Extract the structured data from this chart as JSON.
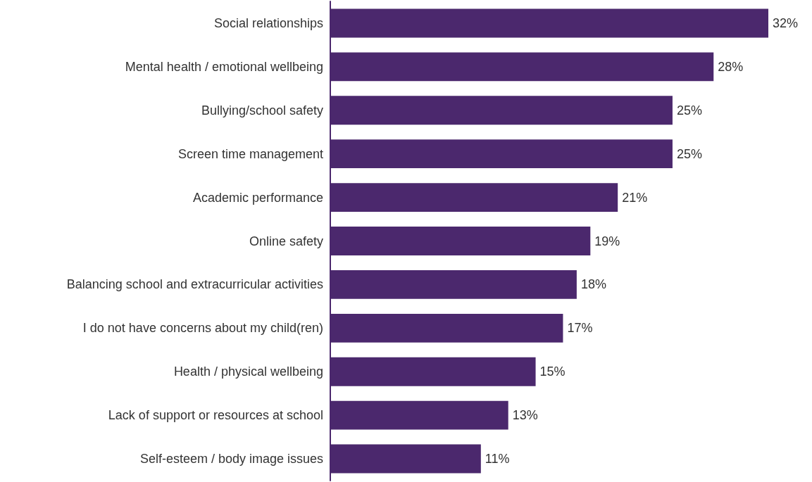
{
  "chart_data": {
    "type": "bar",
    "orientation": "horizontal",
    "categories": [
      "Social relationships",
      "Mental health / emotional wellbeing",
      "Bullying/school safety",
      "Screen time management",
      "Academic performance",
      "Online safety",
      "Balancing school and extracurricular activities",
      "I do not have concerns about my child(ren)",
      "Health / physical wellbeing",
      "Lack of support or resources at school",
      "Self-esteem / body image issues"
    ],
    "values": [
      32,
      28,
      25,
      25,
      21,
      19,
      18,
      17,
      15,
      13,
      11
    ],
    "value_labels": [
      "32%",
      "28%",
      "25%",
      "25%",
      "21%",
      "19%",
      "18%",
      "17%",
      "15%",
      "13%",
      "11%"
    ],
    "color": "#4b286d",
    "tick_labels": "y"
  }
}
